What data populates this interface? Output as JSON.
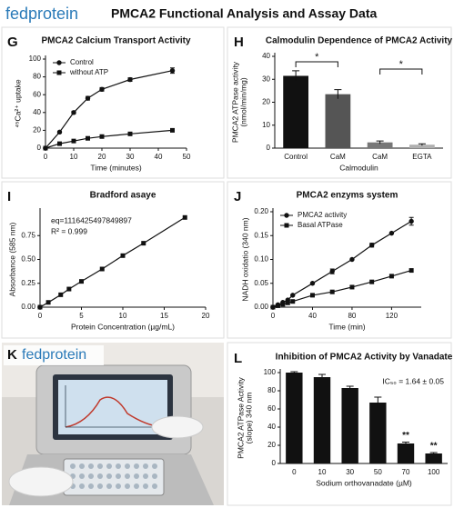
{
  "header": {
    "logo": "fedprotein",
    "title": "PMCA2 Functional Analysis and Assay Data"
  },
  "photo": {
    "panel": "K",
    "logo": "fedprotein"
  },
  "chart_data": [
    {
      "panel": "G",
      "type": "line",
      "title": "PMCA2 Calcium Transport Activity",
      "xlabel": "Time (minutes)",
      "ylabel": "⁴⁵Ca²⁺ uptake",
      "x": [
        0,
        5,
        10,
        15,
        20,
        30,
        45
      ],
      "series": [
        {
          "name": "Control",
          "color": "#111111",
          "marker": "circle",
          "values": [
            0,
            18,
            40,
            56,
            66,
            77,
            87
          ],
          "errors": [
            0,
            1,
            1.5,
            2,
            2,
            2,
            3
          ]
        },
        {
          "name": "without ATP",
          "color": "#111111",
          "marker": "square",
          "values": [
            0,
            5,
            8,
            11,
            13,
            16,
            20
          ]
        }
      ],
      "xlim": [
        0,
        50
      ],
      "xticks": [
        0,
        10,
        20,
        30,
        40,
        50
      ],
      "ylim": [
        0,
        100
      ],
      "yticks": [
        0,
        20,
        40,
        60,
        80,
        100
      ],
      "legend": "upper left"
    },
    {
      "panel": "H",
      "type": "bar",
      "title": "Calmodulin Dependence of PMCA2 Activity",
      "xlabel": "Calmodulin",
      "ylabel": [
        "PMCA2 ATPase activity",
        "(nmol/min/mg)"
      ],
      "categories": [
        "Control",
        "CaM",
        "CaM",
        "EGTA"
      ],
      "values": [
        31.5,
        23.5,
        2.5,
        1.5
      ],
      "errors": [
        2.2,
        2,
        0.6,
        0.4
      ],
      "colors": [
        "#111111",
        "#555555",
        "#777777",
        "#b0b0b0"
      ],
      "ylim": [
        0,
        40
      ],
      "yticks": [
        0,
        10,
        20,
        30,
        40
      ],
      "brackets": [
        {
          "label": "*",
          "from": 0,
          "to": 1
        },
        {
          "label": "*",
          "from": 2,
          "to": 3
        }
      ]
    },
    {
      "panel": "I",
      "type": "line",
      "title": "Bradford asaye",
      "xlabel": "Protein Concentration (µg/mL)",
      "ylabel": "Absorbance (585 nm)",
      "x": [
        0,
        1,
        2.5,
        3.5,
        5,
        7.5,
        10,
        12.5,
        17.5
      ],
      "series": [
        {
          "color": "#111111",
          "marker": "square",
          "values": [
            0,
            0.05,
            0.13,
            0.19,
            0.27,
            0.4,
            0.54,
            0.67,
            0.94
          ]
        }
      ],
      "xlim": [
        0,
        20
      ],
      "xticks": [
        0,
        5,
        10,
        15,
        20
      ],
      "ylim": [
        0,
        1
      ],
      "yticks": [
        {
          "value": 0,
          "label": "0.00"
        },
        {
          "value": 0.25,
          "label": "0.25"
        },
        {
          "value": 0.5,
          "label": "0.50"
        },
        {
          "value": 0.75,
          "label": "0.75"
        }
      ],
      "annotations": [
        "eq=1116425497849897",
        "R² = 0.999"
      ],
      "annotation_position": "upper left"
    },
    {
      "panel": "J",
      "type": "line",
      "title": "PMCA2 enzyms system",
      "xlabel": "Time (min)",
      "ylabel": "NADH oxidatio (340 nm)",
      "x": [
        0,
        5,
        10,
        15,
        20,
        40,
        60,
        80,
        100,
        120,
        140
      ],
      "series": [
        {
          "name": "PMCA2 activity",
          "color": "#111111",
          "marker": "circle",
          "values": [
            0,
            0.005,
            0.01,
            0.015,
            0.025,
            0.05,
            0.075,
            0.1,
            0.13,
            0.155,
            0.18
          ],
          "errors": [
            0,
            0,
            0,
            0,
            0,
            0,
            0.005,
            0,
            0.004,
            0,
            0.008
          ]
        },
        {
          "name": "Basal ATPase",
          "color": "#111111",
          "marker": "square",
          "values": [
            0,
            0.003,
            0.006,
            0.009,
            0.012,
            0.025,
            0.032,
            0.042,
            0.053,
            0.065,
            0.077
          ]
        }
      ],
      "xlim": [
        0,
        150
      ],
      "xticks": [
        0,
        40,
        80,
        120
      ],
      "ylim": [
        0,
        0.2
      ],
      "yticks": [
        {
          "value": 0,
          "label": "0.00"
        },
        {
          "value": 0.05,
          "label": "0.05"
        },
        {
          "value": 0.1,
          "label": "0.10"
        },
        {
          "value": 0.15,
          "label": "0.15"
        },
        {
          "value": 0.2,
          "label": "0.20"
        }
      ],
      "legend": "upper left"
    },
    {
      "panel": "L",
      "type": "bar",
      "title": "Inhibition of PMCA2 Activity by Vanadate",
      "xlabel": "Sodium orthovanadate (µM)",
      "ylabel": [
        "PMCA2 ATPase Activity",
        "(slope) 340 nm"
      ],
      "categories": [
        "0",
        "10",
        "30",
        "50",
        "70",
        "100"
      ],
      "values": [
        100,
        95,
        83,
        67,
        22,
        11
      ],
      "errors": [
        1,
        3,
        2,
        6,
        1.5,
        1
      ],
      "color": "#111111",
      "ylim": [
        0,
        100
      ],
      "yticks": [
        0,
        20,
        40,
        60,
        80,
        100
      ],
      "significance": [
        null,
        null,
        null,
        null,
        "**",
        "**"
      ],
      "annotations": [
        "IC₅₀ = 1.64 ± 0.05"
      ],
      "annotation_position": "upper right"
    }
  ]
}
